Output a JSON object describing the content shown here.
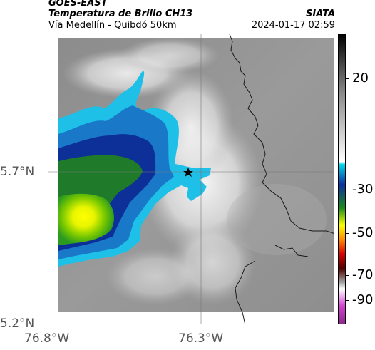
{
  "header": {
    "satellite": "GOES-EAST",
    "product": "Temperatura de Brillo CH13",
    "region": "Vía Medellín - Quibdó 50km",
    "source": "SIATA",
    "datetime": "2024-01-17 02:59"
  },
  "map": {
    "lat_labels": [
      "5.7°N",
      "5.2°N"
    ],
    "lon_labels": [
      "76.8°W",
      "76.3°W"
    ],
    "marker": "star-icon"
  },
  "colorbar": {
    "tick_labels": [
      "20",
      "-30",
      "-50",
      "-70",
      "-90"
    ],
    "colors": [
      "#000000",
      "#ffffff",
      "#00d8e8",
      "#0b2fa0",
      "#1a8a1a",
      "#f8ff00",
      "#ff8800",
      "#d80000",
      "#500000",
      "#ffffff",
      "#d040d0"
    ]
  }
}
